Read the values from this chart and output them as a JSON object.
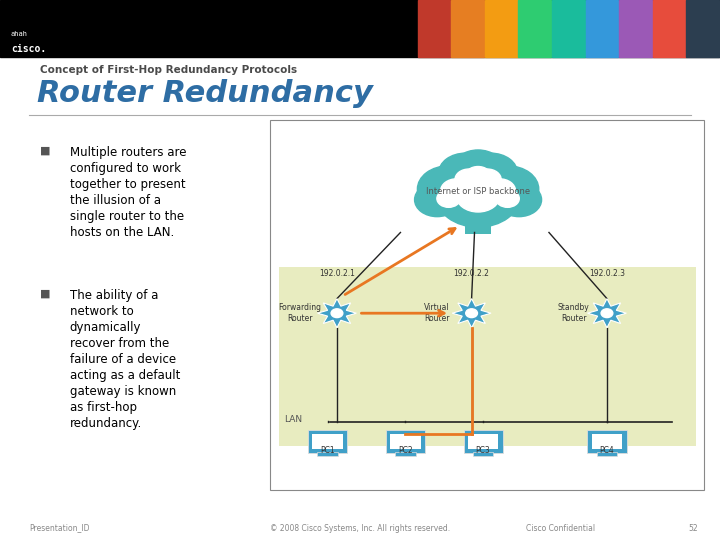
{
  "bg_color": "#ffffff",
  "header_bar_color": "#000000",
  "header_bar_height": 0.105,
  "subtitle_text": "Concept of First-Hop Redundancy Protocols",
  "title_text": "Router Redundancy",
  "subtitle_color": "#4a4a4a",
  "title_color": "#2e6da4",
  "bullet1": "Multiple routers are\nconfigured to work\ntogether to present\nthe illusion of a\nsingle router to the\nhosts on the LAN.",
  "bullet2": "The ability of a\nnetwork to\ndynamically\nrecover from the\nfailure of a device\nacting as a default\ngateway is known\nas first-hop\nredundancy.",
  "bullet_color": "#000000",
  "lan_box_color": "#e8ecc0",
  "cloud_color": "#4ab8b8",
  "cloud_label": "Internet or ISP backbone",
  "ip1": "192.0.2.1",
  "ip2": "192.0.2.2",
  "ip3": "192.0.2.3",
  "router1_label": "Forwarding\nRouter",
  "router2_label": "Virtual\nRouter",
  "router3_label": "Standby\nRouter",
  "pc_labels": [
    "PC1",
    "PC2",
    "PC3",
    "PC4"
  ],
  "footer_left": "Presentation_ID",
  "footer_center": "© 2008 Cisco Systems, Inc. All rights reserved.",
  "footer_right": "Cisco Confidential",
  "footer_page": "52",
  "footer_color": "#888888",
  "arrow_orange_color": "#e87722",
  "line_color": "#222222",
  "router_color": "#40a0c8",
  "pc_color": "#40a0c8",
  "photo_colors": [
    "#c0392b",
    "#e67e22",
    "#f39c12",
    "#2ecc71",
    "#1abc9c",
    "#3498db",
    "#9b59b6",
    "#e74c3c",
    "#2c3e50"
  ]
}
